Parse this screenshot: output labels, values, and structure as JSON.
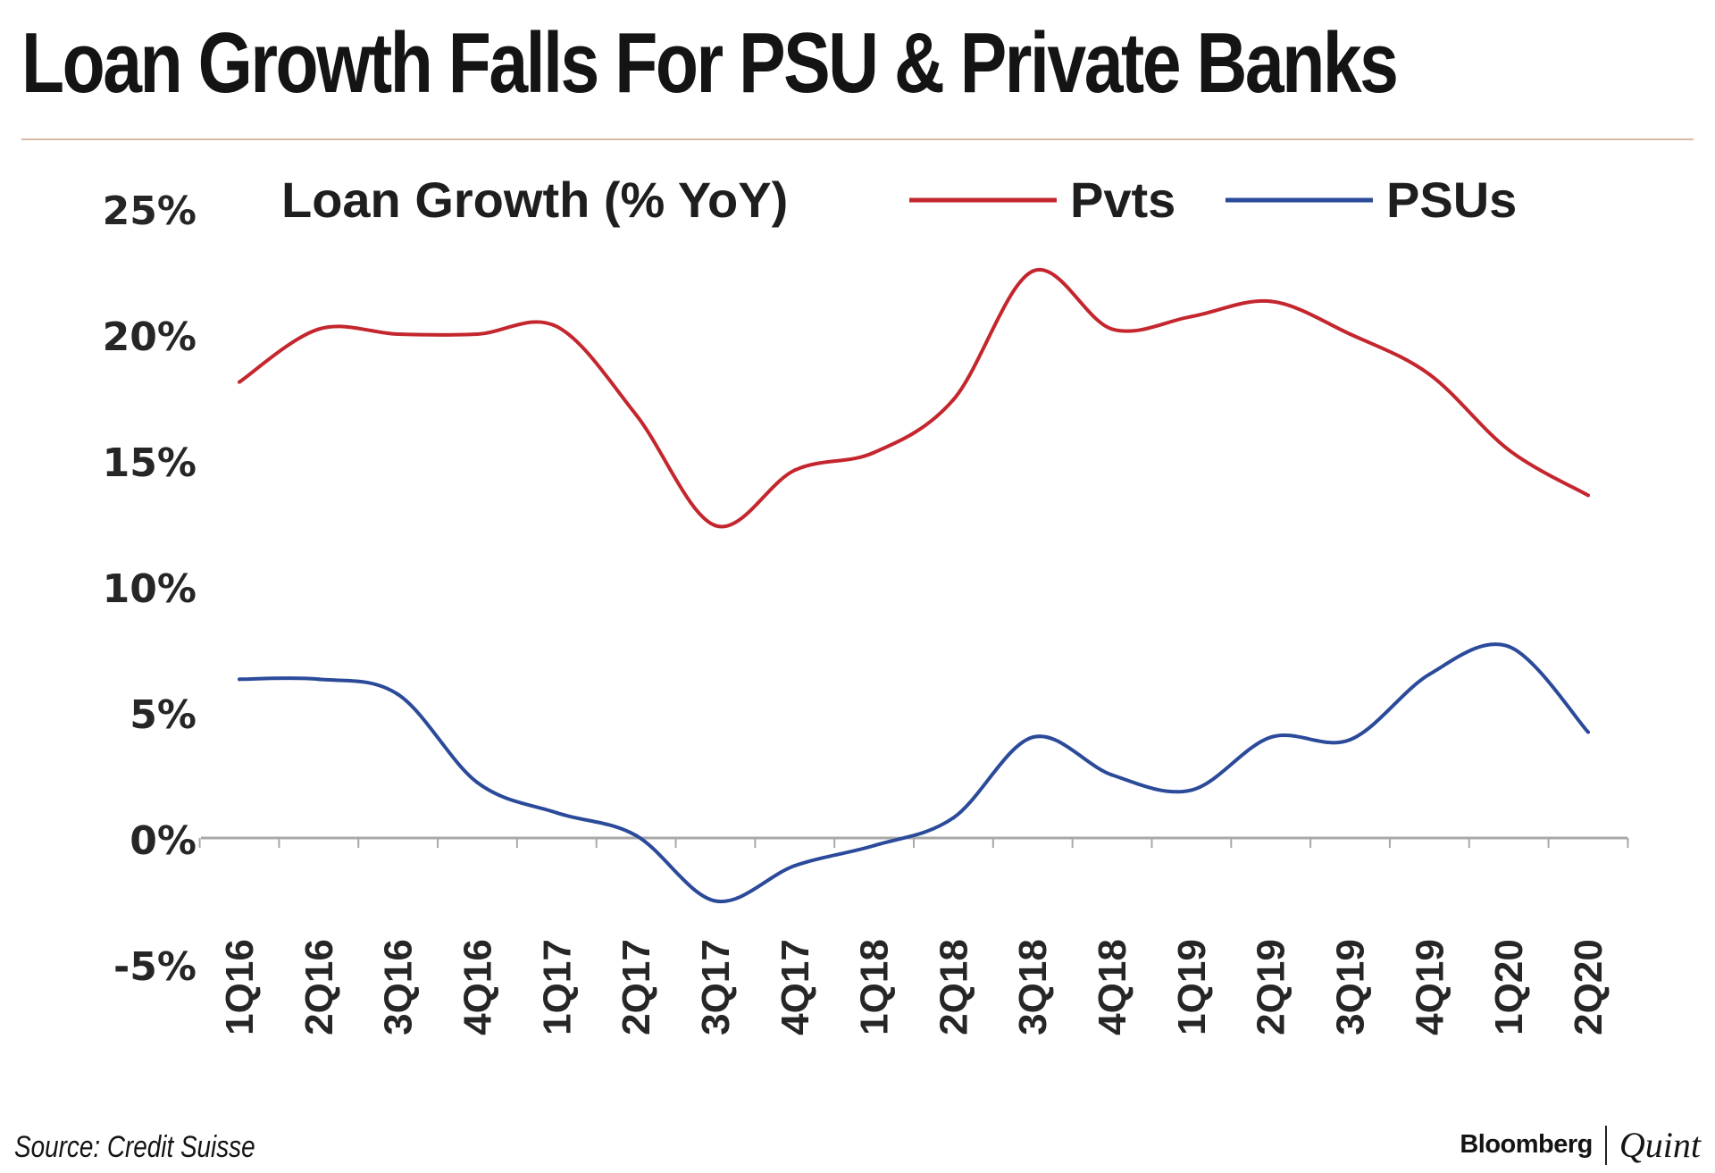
{
  "title": "Loan Growth Falls For PSU & Private Banks",
  "source": "Source: Credit Suisse",
  "brand": {
    "primary": "Bloomberg",
    "secondary": "Quint"
  },
  "colors": {
    "pvts": "#c4262e",
    "psus": "#2b4a99",
    "axis": "#a8a8a8",
    "rule": "#d7b9a4"
  },
  "chart_data": {
    "type": "line",
    "title": "Loan Growth (% YoY)",
    "categories": [
      "1Q16",
      "2Q16",
      "3Q16",
      "4Q16",
      "1Q17",
      "2Q17",
      "3Q17",
      "4Q17",
      "1Q18",
      "2Q18",
      "3Q18",
      "4Q18",
      "1Q19",
      "2Q19",
      "3Q19",
      "4Q19",
      "1Q20",
      "2Q20"
    ],
    "series": [
      {
        "name": "Pvts",
        "color": "#c4262e",
        "values": [
          18.1,
          20.2,
          20.0,
          20.0,
          20.3,
          16.8,
          12.4,
          14.6,
          15.3,
          17.4,
          22.5,
          20.2,
          20.7,
          21.3,
          20.0,
          18.4,
          15.4,
          13.6
        ]
      },
      {
        "name": "PSUs",
        "color": "#2b4a99",
        "values": [
          6.3,
          6.3,
          5.7,
          2.2,
          1.0,
          0.1,
          -2.5,
          -1.1,
          -0.3,
          0.8,
          4.0,
          2.5,
          1.9,
          4.0,
          3.9,
          6.5,
          7.6,
          4.2
        ]
      }
    ],
    "y_ticks": [
      "25%",
      "20%",
      "15%",
      "10%",
      "5%",
      "0%",
      "-5%"
    ],
    "ylim": [
      -5,
      25
    ],
    "grid": false,
    "legend_position": "top"
  }
}
